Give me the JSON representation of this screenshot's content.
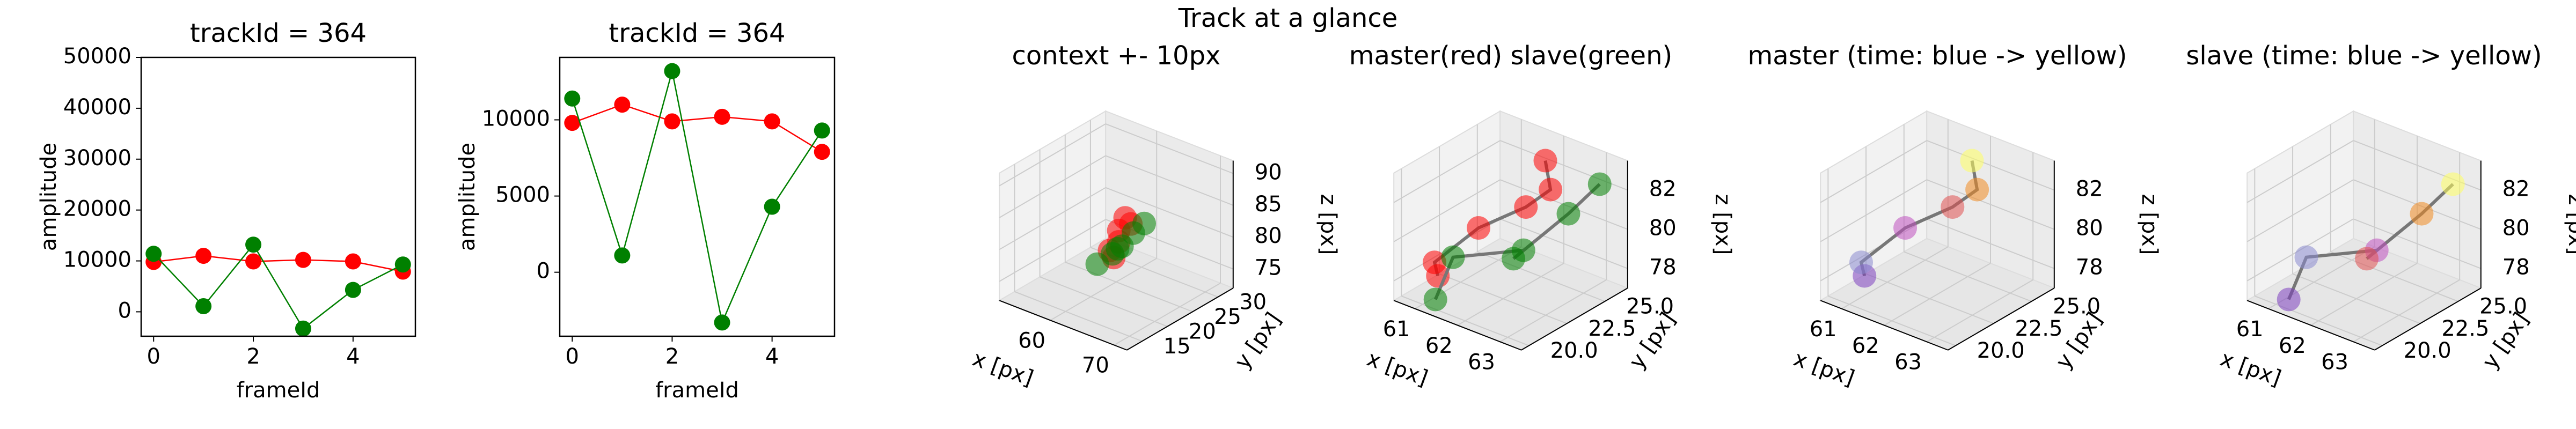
{
  "title": "Track at a glance",
  "chart_data": [
    {
      "type": "line",
      "title": "trackId = 364",
      "xlabel": "frameId",
      "ylabel": "amplitude",
      "x": [
        0,
        1,
        2,
        3,
        4,
        5
      ],
      "xlim": [
        -0.25,
        5.25
      ],
      "xticks": [
        0,
        2,
        4
      ],
      "ylim": [
        -4800,
        50000
      ],
      "yticks": [
        0,
        10000,
        20000,
        30000,
        40000,
        50000
      ],
      "series": [
        {
          "color": "#ff0000",
          "values": [
            9800,
            11000,
            9900,
            10200,
            9900,
            7900
          ]
        },
        {
          "color": "#008000",
          "values": [
            11400,
            1100,
            13200,
            -3300,
            4300,
            9300
          ]
        }
      ]
    },
    {
      "type": "line",
      "title": "trackId = 364",
      "xlabel": "frameId",
      "ylabel": "amplitude",
      "x": [
        0,
        1,
        2,
        3,
        4,
        5
      ],
      "xlim": [
        -0.25,
        5.25
      ],
      "xticks": [
        0,
        2,
        4
      ],
      "ylim": [
        -4200,
        14100
      ],
      "yticks": [
        0,
        5000,
        10000
      ],
      "series": [
        {
          "color": "#ff0000",
          "values": [
            9800,
            11000,
            9900,
            10200,
            9900,
            7900
          ]
        },
        {
          "color": "#008000",
          "values": [
            11400,
            1100,
            13200,
            -3300,
            4300,
            9300
          ]
        }
      ]
    },
    {
      "type": "scatter3d",
      "title": "context +- 10px",
      "xlabel": "x [px]",
      "ylabel": "y [px]",
      "zlabel": "z [px]",
      "xlim": [
        52,
        72
      ],
      "xticks": [
        60,
        70
      ],
      "ylim": [
        12,
        33
      ],
      "yticks": [
        15,
        20,
        25,
        30
      ],
      "zlim": [
        72,
        92
      ],
      "zticks": [
        75,
        80,
        85,
        90
      ],
      "series": [
        {
          "color": "#ff0000",
          "x": [
            62,
            61.5,
            62,
            61.2,
            62.3,
            61.8
          ],
          "y": [
            22,
            21.8,
            23,
            24,
            25,
            24.5
          ],
          "z": [
            78,
            79,
            80,
            81,
            82,
            83
          ]
        },
        {
          "color": "#008000",
          "x": [
            61,
            61.8,
            62.5,
            63,
            63.5,
            64
          ],
          "y": [
            20,
            22,
            23,
            21.5,
            24,
            25.5
          ],
          "z": [
            77.5,
            78.5,
            79.5,
            80,
            81.5,
            82.5
          ]
        }
      ]
    },
    {
      "type": "scatter3d",
      "title": "master(red) slave(green)",
      "xlabel": "x [px]",
      "ylabel": "y [px]",
      "zlabel": "z [px]",
      "xlim": [
        60.5,
        63.5
      ],
      "xticks": [
        61,
        62,
        63
      ],
      "ylim": [
        19.5,
        26.5
      ],
      "yticks": [
        {
          "value": 20,
          "label": "20.0"
        },
        {
          "value": 22.5,
          "label": "22.5"
        },
        {
          "value": 25,
          "label": "25.0"
        }
      ],
      "zlim": [
        77,
        83.5
      ],
      "zticks": [
        78,
        80,
        82
      ],
      "line_color": "#777777",
      "series": [
        {
          "color": "#ff0000",
          "x": [
            61.0,
            61.1,
            61.6,
            62.0,
            62.4,
            62.1
          ],
          "y": [
            21.0,
            20.5,
            22.0,
            24.0,
            24.5,
            25.0
          ],
          "z": [
            78.0,
            79.0,
            80.5,
            81.0,
            82.0,
            83.0
          ]
        },
        {
          "color": "#008000",
          "x": [
            61.3,
            61.0,
            62.3,
            62.6,
            63.0,
            63.2
          ],
          "y": [
            20.0,
            22.0,
            23.0,
            21.5,
            24.0,
            25.5
          ],
          "z": [
            77.5,
            78.5,
            79.5,
            80.0,
            81.5,
            82.5
          ]
        }
      ]
    },
    {
      "type": "scatter3d",
      "title": "master (time: blue -> yellow)",
      "xlabel": "x [px]",
      "ylabel": "y [px]",
      "zlabel": "z [px]",
      "xlim": [
        60.5,
        63.5
      ],
      "xticks": [
        61,
        62,
        63
      ],
      "ylim": [
        19.5,
        26.5
      ],
      "yticks": [
        {
          "value": 20,
          "label": "20.0"
        },
        {
          "value": 22.5,
          "label": "22.5"
        },
        {
          "value": 25,
          "label": "25.0"
        }
      ],
      "zlim": [
        77,
        83.5
      ],
      "zticks": [
        78,
        80,
        82
      ],
      "line_color": "#777777",
      "series": [
        {
          "colors": [
            "#7d3fbf",
            "#8a8ad0",
            "#c050c0",
            "#e05050",
            "#f08a20",
            "#ffff60"
          ],
          "x": [
            61.0,
            61.1,
            61.6,
            62.0,
            62.4,
            62.1
          ],
          "y": [
            21.0,
            20.5,
            22.0,
            24.0,
            24.5,
            25.0
          ],
          "z": [
            78.0,
            79.0,
            80.5,
            81.0,
            82.0,
            83.0
          ]
        }
      ]
    },
    {
      "type": "scatter3d",
      "title": "slave (time: blue -> yellow)",
      "xlabel": "x [px]",
      "ylabel": "y [px]",
      "zlabel": "z [px]",
      "xlim": [
        60.5,
        63.5
      ],
      "xticks": [
        61,
        62,
        63
      ],
      "ylim": [
        19.5,
        26.5
      ],
      "yticks": [
        {
          "value": 20,
          "label": "20.0"
        },
        {
          "value": 22.5,
          "label": "22.5"
        },
        {
          "value": 25,
          "label": "25.0"
        }
      ],
      "zlim": [
        77,
        83.5
      ],
      "zticks": [
        78,
        80,
        82
      ],
      "line_color": "#777777",
      "series": [
        {
          "colors": [
            "#7d3fbf",
            "#8a8ad0",
            "#c050c0",
            "#e05050",
            "#f08a20",
            "#ffff60"
          ],
          "x": [
            61.3,
            61.0,
            62.3,
            62.6,
            63.0,
            63.2
          ],
          "y": [
            20.0,
            22.0,
            23.0,
            21.5,
            24.0,
            25.5
          ],
          "z": [
            77.5,
            78.5,
            79.5,
            80.0,
            81.5,
            82.5
          ]
        }
      ]
    }
  ]
}
